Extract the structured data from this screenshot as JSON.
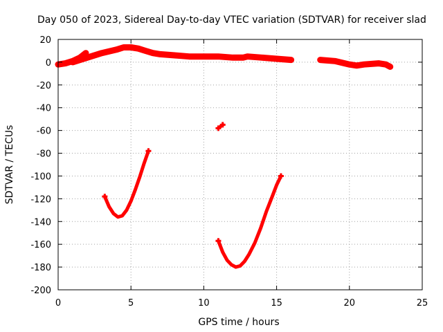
{
  "chart_data": {
    "type": "line",
    "title": "Day 050 of 2023, Sidereal Day-to-day VTEC variation (SDTVAR) for receiver slad",
    "xlabel": "GPS time / hours",
    "ylabel": "SDTVAR / TECUs",
    "xlim": [
      0,
      25
    ],
    "ylim": [
      -200,
      20
    ],
    "xticks": [
      "0",
      "5",
      "10",
      "15",
      "20",
      "25"
    ],
    "yticks": [
      "20",
      "0",
      "-20",
      "-40",
      "-60",
      "-80",
      "-100",
      "-120",
      "-140",
      "-160",
      "-180",
      "-200"
    ],
    "grid": true,
    "color": "#ff0000",
    "series": [
      {
        "name": "upper-band-early",
        "x": [
          0,
          0.5,
          1.0,
          1.5,
          1.9
        ],
        "y": [
          -2,
          -1,
          1,
          4,
          8
        ]
      },
      {
        "name": "upper-band-main",
        "x": [
          1.0,
          2.0,
          3.0,
          4.0,
          4.5,
          5.0,
          5.5,
          6.0,
          6.5,
          7.0,
          8.0,
          9.0,
          10.0,
          11.0,
          12.0,
          12.7,
          13.0,
          14.0,
          15.0,
          16.0
        ],
        "y": [
          0,
          4,
          8,
          11,
          13,
          13,
          12,
          10,
          8,
          7,
          6,
          5,
          5,
          5,
          4,
          4,
          5,
          4,
          3,
          2
        ]
      },
      {
        "name": "upper-band-late",
        "x": [
          18.0,
          19.0,
          20.0,
          20.5,
          21.0,
          22.0,
          22.5,
          22.8
        ],
        "y": [
          2,
          1,
          -2,
          -3,
          -2,
          -1,
          -2,
          -4
        ]
      },
      {
        "name": "small-arc",
        "x": [
          11.0,
          11.3
        ],
        "y": [
          -58,
          -55
        ]
      },
      {
        "name": "arc-1",
        "x": [
          3.2,
          3.5,
          3.8,
          4.1,
          4.4,
          4.7,
          5.0,
          5.3,
          5.6,
          5.9,
          6.2
        ],
        "y": [
          -118,
          -127,
          -133,
          -136,
          -135,
          -130,
          -122,
          -112,
          -101,
          -89,
          -78
        ]
      },
      {
        "name": "arc-2",
        "x": [
          11.0,
          11.3,
          11.6,
          11.9,
          12.2,
          12.5,
          12.8,
          13.1,
          13.5,
          13.9,
          14.3,
          14.7,
          15.0,
          15.3
        ],
        "y": [
          -157,
          -167,
          -174,
          -178,
          -180,
          -179,
          -175,
          -169,
          -159,
          -146,
          -131,
          -118,
          -108,
          -100
        ]
      }
    ]
  }
}
